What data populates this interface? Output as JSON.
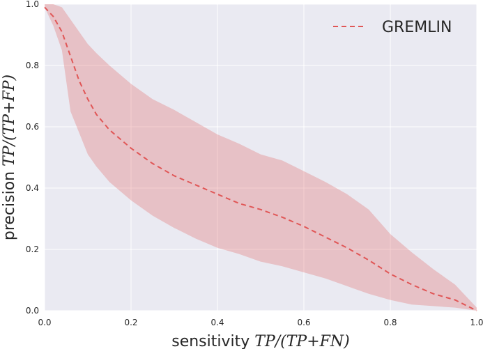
{
  "chart_data": {
    "type": "line",
    "title": "",
    "xlabel": {
      "prefix": "sensitivity ",
      "math": "TP/(TP+FN)"
    },
    "ylabel": {
      "prefix": "precision ",
      "math": "TP/(TP+FP)"
    },
    "xlim": [
      0,
      1
    ],
    "ylim": [
      0,
      1
    ],
    "xticks": [
      "0.0",
      "0.2",
      "0.4",
      "0.6",
      "0.8",
      "1.0"
    ],
    "yticks": [
      "0.0",
      "0.2",
      "0.4",
      "0.6",
      "0.8",
      "1.0"
    ],
    "grid": true,
    "legend_position": "top-right",
    "series": [
      {
        "name": "GREMLIN",
        "color": "#e05656",
        "style": "dashed",
        "x": [
          0.0,
          0.02,
          0.04,
          0.06,
          0.08,
          0.1,
          0.12,
          0.15,
          0.2,
          0.25,
          0.3,
          0.35,
          0.4,
          0.45,
          0.5,
          0.55,
          0.6,
          0.65,
          0.7,
          0.75,
          0.8,
          0.85,
          0.9,
          0.95,
          1.0
        ],
        "y": [
          0.99,
          0.96,
          0.91,
          0.83,
          0.75,
          0.69,
          0.64,
          0.59,
          0.53,
          0.48,
          0.44,
          0.41,
          0.38,
          0.35,
          0.33,
          0.305,
          0.275,
          0.24,
          0.205,
          0.165,
          0.12,
          0.085,
          0.055,
          0.035,
          0.0
        ],
        "lower": [
          0.99,
          0.93,
          0.85,
          0.65,
          0.58,
          0.51,
          0.47,
          0.42,
          0.36,
          0.31,
          0.27,
          0.235,
          0.205,
          0.185,
          0.16,
          0.145,
          0.125,
          0.105,
          0.08,
          0.055,
          0.035,
          0.02,
          0.015,
          0.01,
          0.0
        ],
        "upper": [
          1.0,
          1.0,
          0.99,
          0.95,
          0.91,
          0.87,
          0.84,
          0.8,
          0.74,
          0.69,
          0.655,
          0.615,
          0.575,
          0.545,
          0.51,
          0.49,
          0.455,
          0.42,
          0.38,
          0.33,
          0.25,
          0.19,
          0.135,
          0.085,
          0.01
        ]
      }
    ]
  }
}
